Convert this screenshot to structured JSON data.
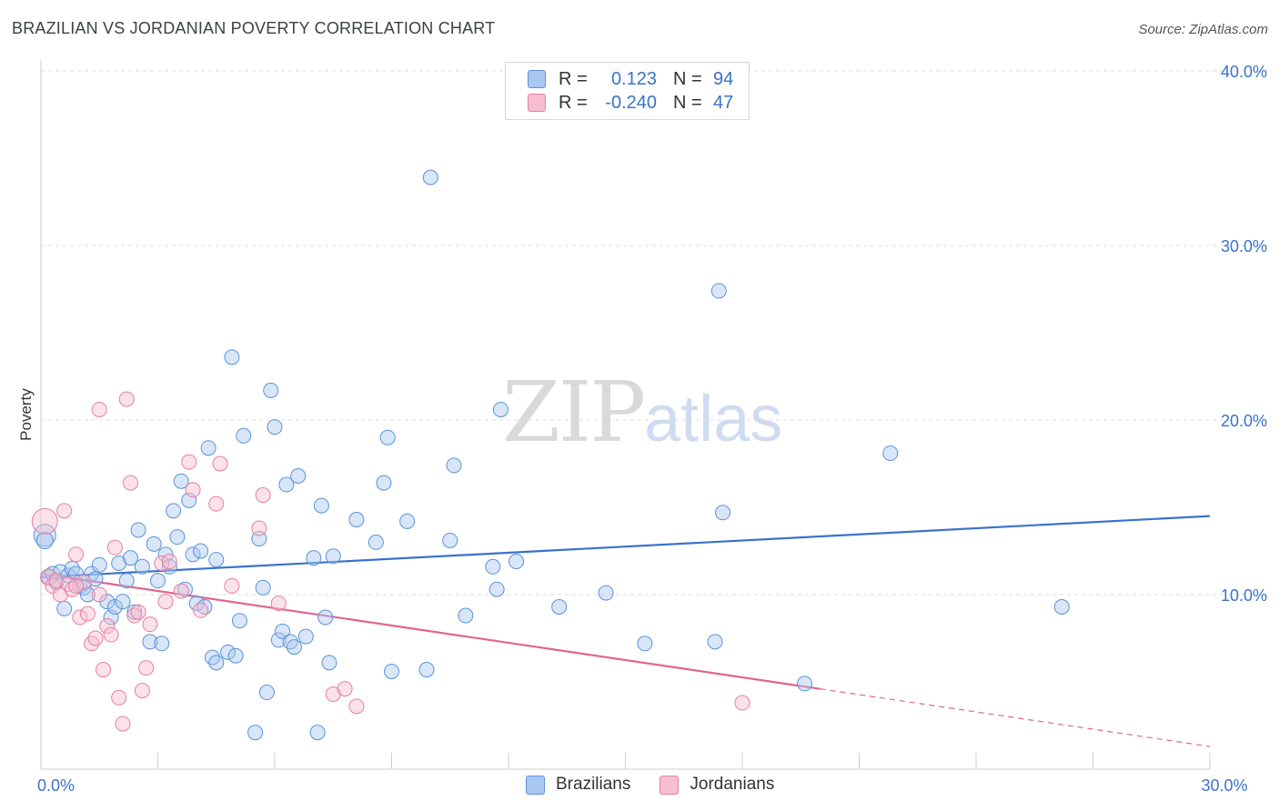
{
  "title": "BRAZILIAN VS JORDANIAN POVERTY CORRELATION CHART",
  "source": "Source: ZipAtlas.com",
  "watermark": {
    "zip": "ZIP",
    "atlas": "atlas"
  },
  "legend": {
    "rows": [
      {
        "r_label": "R =",
        "r_value": "0.123",
        "n_label": "N =",
        "n_value": "94",
        "color": "#a8c8f0",
        "border": "#5b93d8"
      },
      {
        "r_label": "R =",
        "r_value": "-0.240",
        "n_label": "N =",
        "n_value": "47",
        "color": "#f6bfd0",
        "border": "#e67fa2"
      }
    ]
  },
  "bottom_legend": [
    {
      "label": "Brazilians",
      "color": "#a8c8f0",
      "border": "#5b93d8"
    },
    {
      "label": "Jordanians",
      "color": "#f6bfd0",
      "border": "#e67fa2"
    }
  ],
  "chart_data": {
    "type": "scatter",
    "ylabel": "Poverty",
    "xlim": [
      0,
      30
    ],
    "ylim": [
      0,
      40
    ],
    "x_tick_labels": [
      {
        "value": 0,
        "label": "0.0%"
      },
      {
        "value": 30,
        "label": "30.0%"
      }
    ],
    "y_tick_labels": [
      {
        "value": 10,
        "label": "10.0%"
      },
      {
        "value": 20,
        "label": "20.0%"
      },
      {
        "value": 30,
        "label": "30.0%"
      },
      {
        "value": 40,
        "label": "40.0%"
      }
    ],
    "grid": true,
    "series": [
      {
        "name": "Brazilians",
        "color": "#5b93d8",
        "fill": "rgba(168,200,240,0.45)",
        "points": [
          [
            0.1,
            13.4
          ],
          [
            0.1,
            13.1
          ],
          [
            0.2,
            11.0
          ],
          [
            0.3,
            11.2
          ],
          [
            0.4,
            10.7
          ],
          [
            0.5,
            11.3
          ],
          [
            0.6,
            9.2
          ],
          [
            0.7,
            11.1
          ],
          [
            0.8,
            11.5
          ],
          [
            0.9,
            11.2
          ],
          [
            1.0,
            10.5
          ],
          [
            1.1,
            10.4
          ],
          [
            1.2,
            10.0
          ],
          [
            1.3,
            11.2
          ],
          [
            1.4,
            10.9
          ],
          [
            1.5,
            11.7
          ],
          [
            1.7,
            9.6
          ],
          [
            1.8,
            8.7
          ],
          [
            1.9,
            9.3
          ],
          [
            2.0,
            11.8
          ],
          [
            2.1,
            9.6
          ],
          [
            2.2,
            10.8
          ],
          [
            2.3,
            12.1
          ],
          [
            2.4,
            9.0
          ],
          [
            2.5,
            13.7
          ],
          [
            2.6,
            11.6
          ],
          [
            2.8,
            7.3
          ],
          [
            2.9,
            12.9
          ],
          [
            3.0,
            10.8
          ],
          [
            3.1,
            7.2
          ],
          [
            3.2,
            12.3
          ],
          [
            3.3,
            11.6
          ],
          [
            3.4,
            14.8
          ],
          [
            3.5,
            13.3
          ],
          [
            3.6,
            16.5
          ],
          [
            3.7,
            10.3
          ],
          [
            3.8,
            15.4
          ],
          [
            3.9,
            12.3
          ],
          [
            4.0,
            9.5
          ],
          [
            4.1,
            12.5
          ],
          [
            4.2,
            9.3
          ],
          [
            4.3,
            18.4
          ],
          [
            4.4,
            6.4
          ],
          [
            4.5,
            6.1
          ],
          [
            4.5,
            12.0
          ],
          [
            4.8,
            6.7
          ],
          [
            4.9,
            23.6
          ],
          [
            5.0,
            6.5
          ],
          [
            5.1,
            8.5
          ],
          [
            5.2,
            19.1
          ],
          [
            5.5,
            2.1
          ],
          [
            5.6,
            13.2
          ],
          [
            5.7,
            10.4
          ],
          [
            5.8,
            4.4
          ],
          [
            5.9,
            21.7
          ],
          [
            6.0,
            19.6
          ],
          [
            6.1,
            7.4
          ],
          [
            6.2,
            7.9
          ],
          [
            6.3,
            16.3
          ],
          [
            6.4,
            7.3
          ],
          [
            6.5,
            7.0
          ],
          [
            6.6,
            16.8
          ],
          [
            6.8,
            7.6
          ],
          [
            7.0,
            12.1
          ],
          [
            7.1,
            2.1
          ],
          [
            7.2,
            15.1
          ],
          [
            7.3,
            8.7
          ],
          [
            7.4,
            6.1
          ],
          [
            7.5,
            12.2
          ],
          [
            8.1,
            14.3
          ],
          [
            8.6,
            13.0
          ],
          [
            8.8,
            16.4
          ],
          [
            8.9,
            19.0
          ],
          [
            9.0,
            5.6
          ],
          [
            9.4,
            14.2
          ],
          [
            9.9,
            5.7
          ],
          [
            10.0,
            33.9
          ],
          [
            10.5,
            13.1
          ],
          [
            10.6,
            17.4
          ],
          [
            10.9,
            8.8
          ],
          [
            11.6,
            11.6
          ],
          [
            11.7,
            10.3
          ],
          [
            11.8,
            20.6
          ],
          [
            12.2,
            11.9
          ],
          [
            13.3,
            9.3
          ],
          [
            14.5,
            10.1
          ],
          [
            15.5,
            7.2
          ],
          [
            17.3,
            7.3
          ],
          [
            17.4,
            27.4
          ],
          [
            17.5,
            14.7
          ],
          [
            19.6,
            4.9
          ],
          [
            21.8,
            18.1
          ],
          [
            26.2,
            9.3
          ]
        ]
      },
      {
        "name": "Jordanians",
        "color": "#e67fa2",
        "fill": "rgba(246,191,208,0.45)",
        "points": [
          [
            0.1,
            14.2
          ],
          [
            0.2,
            11.0
          ],
          [
            0.3,
            10.5
          ],
          [
            0.4,
            10.8
          ],
          [
            0.5,
            10.0
          ],
          [
            0.6,
            14.8
          ],
          [
            0.7,
            10.6
          ],
          [
            0.8,
            10.3
          ],
          [
            0.9,
            12.3
          ],
          [
            1.0,
            8.7
          ],
          [
            1.1,
            10.7
          ],
          [
            1.2,
            8.9
          ],
          [
            1.3,
            7.2
          ],
          [
            1.4,
            7.5
          ],
          [
            1.5,
            10.0
          ],
          [
            1.6,
            5.7
          ],
          [
            1.7,
            8.2
          ],
          [
            1.8,
            7.7
          ],
          [
            1.9,
            12.7
          ],
          [
            2.0,
            4.1
          ],
          [
            2.1,
            2.6
          ],
          [
            2.2,
            21.2
          ],
          [
            2.3,
            16.4
          ],
          [
            2.4,
            8.8
          ],
          [
            2.5,
            9.0
          ],
          [
            2.6,
            4.5
          ],
          [
            2.7,
            5.8
          ],
          [
            2.8,
            8.3
          ],
          [
            3.1,
            11.8
          ],
          [
            3.2,
            9.6
          ],
          [
            3.3,
            11.9
          ],
          [
            3.6,
            10.2
          ],
          [
            3.8,
            17.6
          ],
          [
            3.9,
            16.0
          ],
          [
            4.1,
            9.1
          ],
          [
            4.5,
            15.2
          ],
          [
            4.6,
            17.5
          ],
          [
            4.9,
            10.5
          ],
          [
            5.6,
            13.8
          ],
          [
            5.7,
            15.7
          ],
          [
            6.1,
            9.5
          ],
          [
            7.5,
            4.3
          ],
          [
            7.8,
            4.6
          ],
          [
            8.1,
            3.6
          ],
          [
            1.5,
            20.6
          ],
          [
            18.0,
            3.8
          ],
          [
            0.9,
            10.5
          ]
        ]
      }
    ],
    "trend_lines": [
      {
        "series": "Brazilians",
        "x1": 0,
        "y1": 11.0,
        "x2": 30,
        "y2": 14.5,
        "color": "#3a73c9"
      },
      {
        "series": "Jordanians",
        "x1": 0,
        "y1": 11.2,
        "x2": 20,
        "y2": 4.6,
        "dashed_to_x": 30,
        "dashed_to_y": 1.3,
        "color": "#e0668f"
      }
    ]
  }
}
